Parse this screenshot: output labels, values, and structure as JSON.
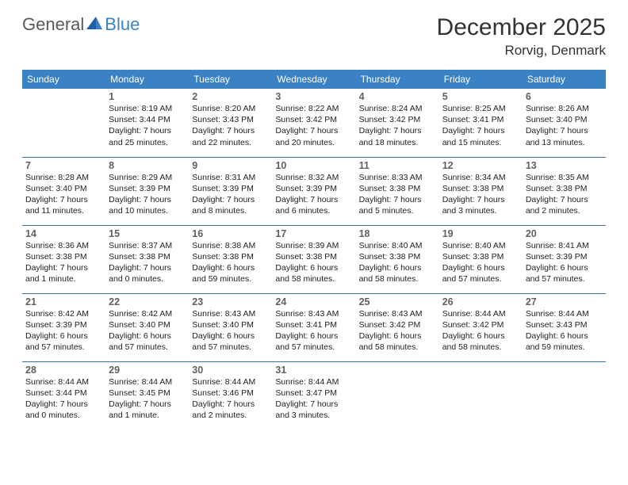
{
  "logo": {
    "text1": "General",
    "text2": "Blue"
  },
  "title": "December 2025",
  "location": "Rorvig, Denmark",
  "colors": {
    "header_bg": "#3b82c4",
    "header_text": "#ffffff",
    "row_border": "#3b6fa8",
    "daynum": "#606060",
    "body_text": "#222222",
    "logo_gray": "#5a5a5a",
    "logo_blue": "#3b82c4"
  },
  "day_headers": [
    "Sunday",
    "Monday",
    "Tuesday",
    "Wednesday",
    "Thursday",
    "Friday",
    "Saturday"
  ],
  "weeks": [
    [
      null,
      {
        "n": "1",
        "sr": "Sunrise: 8:19 AM",
        "ss": "Sunset: 3:44 PM",
        "dl": "Daylight: 7 hours and 25 minutes."
      },
      {
        "n": "2",
        "sr": "Sunrise: 8:20 AM",
        "ss": "Sunset: 3:43 PM",
        "dl": "Daylight: 7 hours and 22 minutes."
      },
      {
        "n": "3",
        "sr": "Sunrise: 8:22 AM",
        "ss": "Sunset: 3:42 PM",
        "dl": "Daylight: 7 hours and 20 minutes."
      },
      {
        "n": "4",
        "sr": "Sunrise: 8:24 AM",
        "ss": "Sunset: 3:42 PM",
        "dl": "Daylight: 7 hours and 18 minutes."
      },
      {
        "n": "5",
        "sr": "Sunrise: 8:25 AM",
        "ss": "Sunset: 3:41 PM",
        "dl": "Daylight: 7 hours and 15 minutes."
      },
      {
        "n": "6",
        "sr": "Sunrise: 8:26 AM",
        "ss": "Sunset: 3:40 PM",
        "dl": "Daylight: 7 hours and 13 minutes."
      }
    ],
    [
      {
        "n": "7",
        "sr": "Sunrise: 8:28 AM",
        "ss": "Sunset: 3:40 PM",
        "dl": "Daylight: 7 hours and 11 minutes."
      },
      {
        "n": "8",
        "sr": "Sunrise: 8:29 AM",
        "ss": "Sunset: 3:39 PM",
        "dl": "Daylight: 7 hours and 10 minutes."
      },
      {
        "n": "9",
        "sr": "Sunrise: 8:31 AM",
        "ss": "Sunset: 3:39 PM",
        "dl": "Daylight: 7 hours and 8 minutes."
      },
      {
        "n": "10",
        "sr": "Sunrise: 8:32 AM",
        "ss": "Sunset: 3:39 PM",
        "dl": "Daylight: 7 hours and 6 minutes."
      },
      {
        "n": "11",
        "sr": "Sunrise: 8:33 AM",
        "ss": "Sunset: 3:38 PM",
        "dl": "Daylight: 7 hours and 5 minutes."
      },
      {
        "n": "12",
        "sr": "Sunrise: 8:34 AM",
        "ss": "Sunset: 3:38 PM",
        "dl": "Daylight: 7 hours and 3 minutes."
      },
      {
        "n": "13",
        "sr": "Sunrise: 8:35 AM",
        "ss": "Sunset: 3:38 PM",
        "dl": "Daylight: 7 hours and 2 minutes."
      }
    ],
    [
      {
        "n": "14",
        "sr": "Sunrise: 8:36 AM",
        "ss": "Sunset: 3:38 PM",
        "dl": "Daylight: 7 hours and 1 minute."
      },
      {
        "n": "15",
        "sr": "Sunrise: 8:37 AM",
        "ss": "Sunset: 3:38 PM",
        "dl": "Daylight: 7 hours and 0 minutes."
      },
      {
        "n": "16",
        "sr": "Sunrise: 8:38 AM",
        "ss": "Sunset: 3:38 PM",
        "dl": "Daylight: 6 hours and 59 minutes."
      },
      {
        "n": "17",
        "sr": "Sunrise: 8:39 AM",
        "ss": "Sunset: 3:38 PM",
        "dl": "Daylight: 6 hours and 58 minutes."
      },
      {
        "n": "18",
        "sr": "Sunrise: 8:40 AM",
        "ss": "Sunset: 3:38 PM",
        "dl": "Daylight: 6 hours and 58 minutes."
      },
      {
        "n": "19",
        "sr": "Sunrise: 8:40 AM",
        "ss": "Sunset: 3:38 PM",
        "dl": "Daylight: 6 hours and 57 minutes."
      },
      {
        "n": "20",
        "sr": "Sunrise: 8:41 AM",
        "ss": "Sunset: 3:39 PM",
        "dl": "Daylight: 6 hours and 57 minutes."
      }
    ],
    [
      {
        "n": "21",
        "sr": "Sunrise: 8:42 AM",
        "ss": "Sunset: 3:39 PM",
        "dl": "Daylight: 6 hours and 57 minutes."
      },
      {
        "n": "22",
        "sr": "Sunrise: 8:42 AM",
        "ss": "Sunset: 3:40 PM",
        "dl": "Daylight: 6 hours and 57 minutes."
      },
      {
        "n": "23",
        "sr": "Sunrise: 8:43 AM",
        "ss": "Sunset: 3:40 PM",
        "dl": "Daylight: 6 hours and 57 minutes."
      },
      {
        "n": "24",
        "sr": "Sunrise: 8:43 AM",
        "ss": "Sunset: 3:41 PM",
        "dl": "Daylight: 6 hours and 57 minutes."
      },
      {
        "n": "25",
        "sr": "Sunrise: 8:43 AM",
        "ss": "Sunset: 3:42 PM",
        "dl": "Daylight: 6 hours and 58 minutes."
      },
      {
        "n": "26",
        "sr": "Sunrise: 8:44 AM",
        "ss": "Sunset: 3:42 PM",
        "dl": "Daylight: 6 hours and 58 minutes."
      },
      {
        "n": "27",
        "sr": "Sunrise: 8:44 AM",
        "ss": "Sunset: 3:43 PM",
        "dl": "Daylight: 6 hours and 59 minutes."
      }
    ],
    [
      {
        "n": "28",
        "sr": "Sunrise: 8:44 AM",
        "ss": "Sunset: 3:44 PM",
        "dl": "Daylight: 7 hours and 0 minutes."
      },
      {
        "n": "29",
        "sr": "Sunrise: 8:44 AM",
        "ss": "Sunset: 3:45 PM",
        "dl": "Daylight: 7 hours and 1 minute."
      },
      {
        "n": "30",
        "sr": "Sunrise: 8:44 AM",
        "ss": "Sunset: 3:46 PM",
        "dl": "Daylight: 7 hours and 2 minutes."
      },
      {
        "n": "31",
        "sr": "Sunrise: 8:44 AM",
        "ss": "Sunset: 3:47 PM",
        "dl": "Daylight: 7 hours and 3 minutes."
      },
      null,
      null,
      null
    ]
  ]
}
